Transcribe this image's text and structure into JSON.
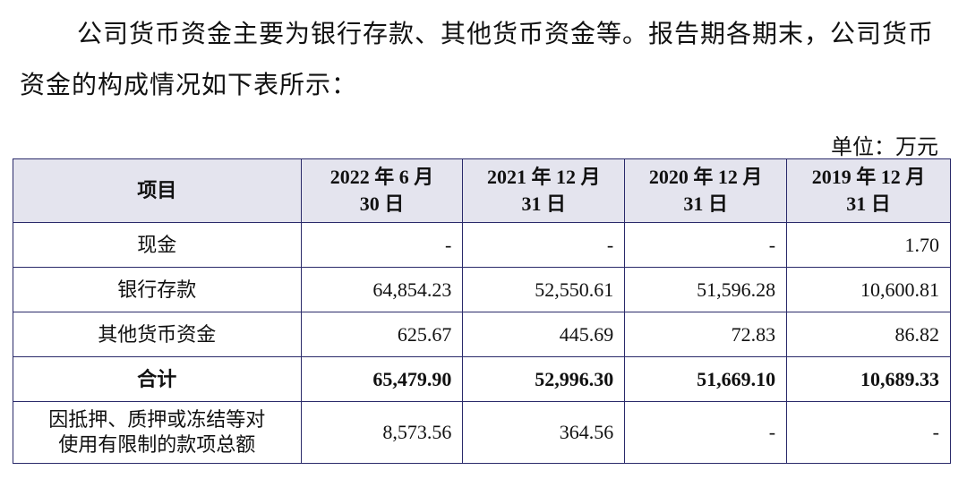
{
  "paragraph": [
    "公司货币资金主要为银行存款、其他货币资金等。报告期各期末，公司货币",
    "资金的构成情况如下表所示："
  ],
  "unit": "单位：万元",
  "table": {
    "header": [
      [
        "项目"
      ],
      [
        "2022 年 6 月",
        "30 日"
      ],
      [
        "2021 年 12 月",
        "31 日"
      ],
      [
        "2020 年 12 月",
        "31 日"
      ],
      [
        "2019 年 12 月",
        "31 日"
      ]
    ],
    "rows": [
      [
        [
          "现金"
        ],
        "-",
        "-",
        "-",
        "1.70"
      ],
      [
        [
          "银行存款"
        ],
        "64,854.23",
        "52,550.61",
        "51,596.28",
        "10,600.81"
      ],
      [
        [
          "其他货币资金"
        ],
        "625.67",
        "445.69",
        "72.83",
        "86.82"
      ],
      [
        [
          "合计"
        ],
        "65,479.90",
        "52,996.30",
        "51,669.10",
        "10,689.33"
      ],
      [
        [
          "因抵押、质押或冻结等对",
          "使用有限制的款项总额"
        ],
        "8,573.56",
        "364.56",
        "-",
        "-"
      ]
    ]
  }
}
